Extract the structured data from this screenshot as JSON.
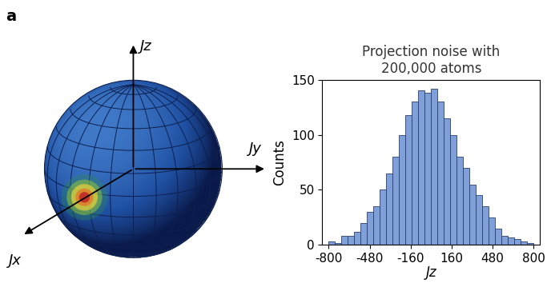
{
  "panel_label": "a",
  "sphere": {
    "axis_labels": {
      "z": "Jz",
      "y": "Jy",
      "x": "Jx"
    }
  },
  "chart_data": {
    "type": "histogram",
    "title": "Projection noise with\n200,000 atoms",
    "x_label": "Jz",
    "y_label": "Counts",
    "bins": [
      -800,
      -750,
      -700,
      -650,
      -600,
      -550,
      -500,
      -450,
      -400,
      -350,
      -300,
      -250,
      -200,
      -150,
      -100,
      -50,
      0,
      50,
      100,
      150,
      200,
      250,
      300,
      350,
      400,
      450,
      500,
      550,
      600,
      650,
      700,
      750,
      800
    ],
    "counts": [
      3,
      2,
      8,
      8,
      12,
      20,
      30,
      35,
      50,
      65,
      80,
      100,
      118,
      130,
      140,
      138,
      142,
      130,
      115,
      100,
      80,
      70,
      55,
      45,
      35,
      25,
      15,
      8,
      7,
      5,
      3,
      2
    ],
    "color": "#7f9fd8",
    "xlim": [
      -850,
      850
    ],
    "ylim": [
      0,
      150
    ],
    "xticks": [
      -800,
      -480,
      -160,
      160,
      480,
      800
    ],
    "yticks": [
      0,
      50,
      100,
      150
    ]
  }
}
